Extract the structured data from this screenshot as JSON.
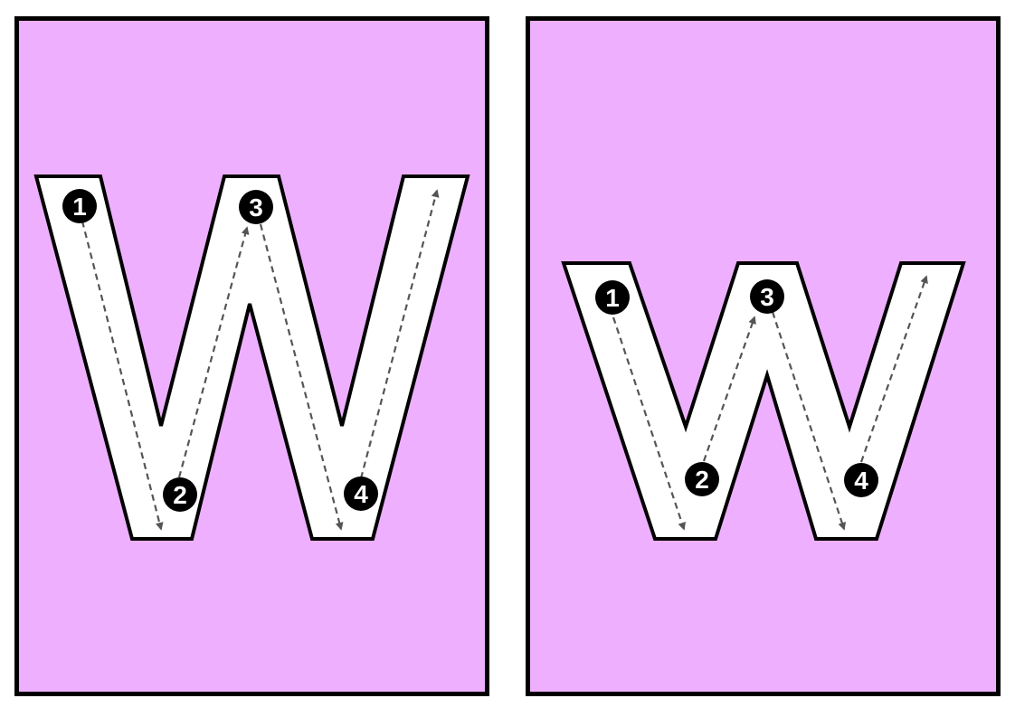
{
  "cards": [
    {
      "letter": "W",
      "case": "uppercase",
      "background": "#eeb0fe",
      "stroke_numbers": [
        "1",
        "2",
        "3",
        "4"
      ]
    },
    {
      "letter": "w",
      "case": "lowercase",
      "background": "#eeb0fe",
      "stroke_numbers": [
        "1",
        "2",
        "3",
        "4"
      ]
    }
  ],
  "colors": {
    "card_border": "#000000",
    "letter_fill": "#ffffff",
    "letter_outline": "#000000",
    "guide_line": "#555555",
    "marker_fill": "#000000",
    "marker_text": "#ffffff"
  },
  "icons": [
    "arrow-head-icon",
    "stroke-number-marker-icon"
  ]
}
